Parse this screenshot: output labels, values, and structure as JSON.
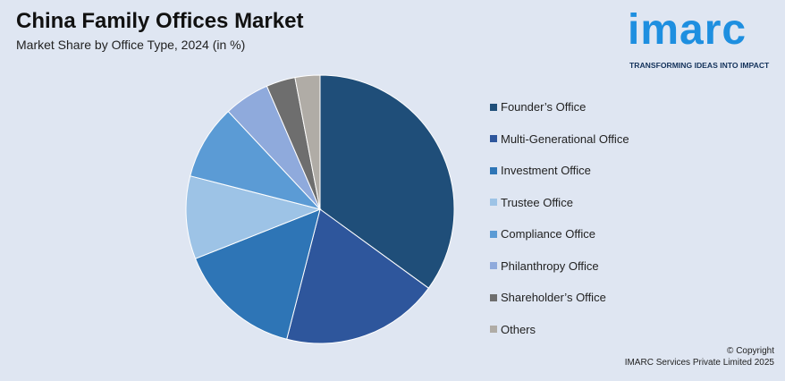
{
  "header": {
    "title": "China Family Offices Market",
    "subtitle": "Market Share by Office Type, 2024 (in %)"
  },
  "logo": {
    "word": "imarc",
    "tagline": "TRANSFORMING IDEAS INTO IMPACT",
    "color": "#1e8fe0"
  },
  "chart_data": {
    "type": "pie",
    "title": "China Family Offices Market",
    "subtitle": "Market Share by Office Type, 2024 (in %)",
    "start": "12 o'clock, clockwise",
    "legend_position": "right",
    "slices": [
      {
        "label": "Founder’s Office",
        "value": 35,
        "color": "#1f4e79"
      },
      {
        "label": "Multi-Generational Office",
        "value": 19,
        "color": "#2e569c"
      },
      {
        "label": "Investment Office",
        "value": 15,
        "color": "#2e75b6"
      },
      {
        "label": "Trustee Office",
        "value": 10,
        "color": "#9dc3e6"
      },
      {
        "label": "Compliance Office",
        "value": 9,
        "color": "#5b9bd5"
      },
      {
        "label": "Philanthropy Office",
        "value": 5.5,
        "color": "#8faadc"
      },
      {
        "label": "Shareholder’s Office",
        "value": 3.5,
        "color": "#6e6e6e"
      },
      {
        "label": "Others",
        "value": 3,
        "color": "#b0aca6"
      }
    ]
  },
  "footer": {
    "copyright_line1": "© Copyright",
    "copyright_line2": "IMARC Services Private Limited 2025"
  }
}
